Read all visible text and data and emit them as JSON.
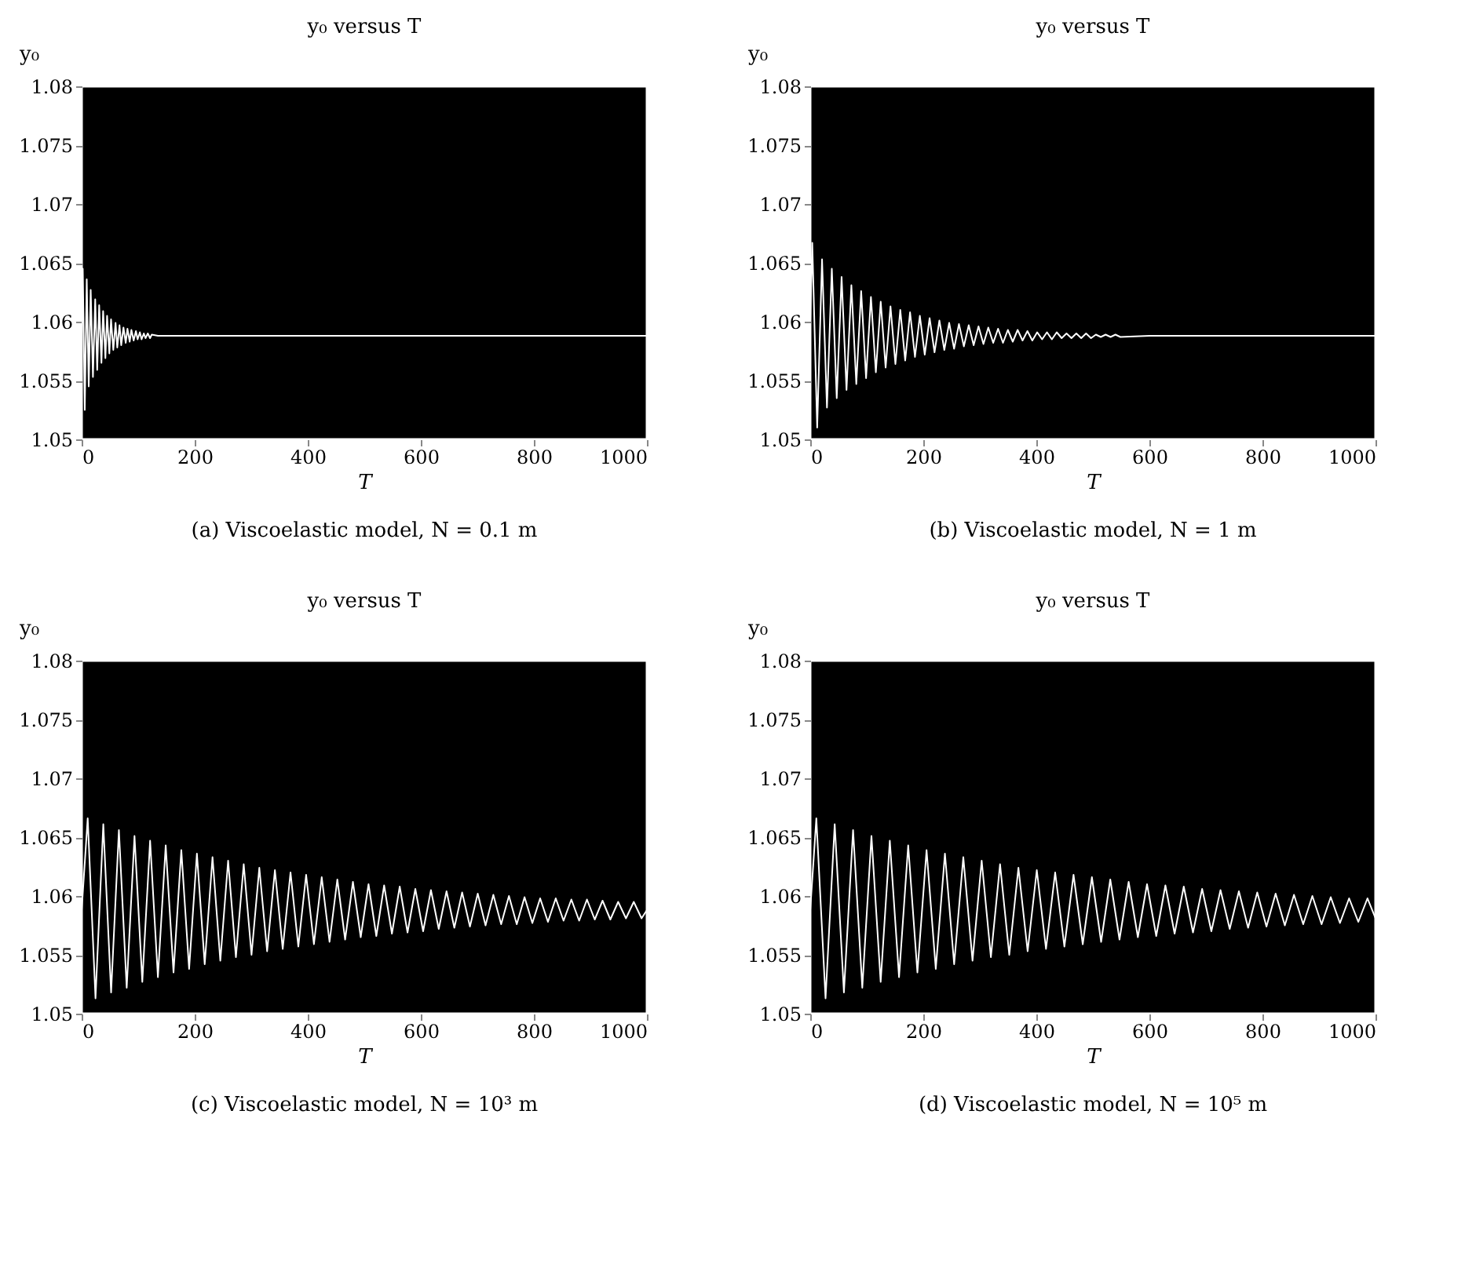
{
  "chart_data": [
    {
      "type": "line",
      "title": "y₀ versus T",
      "xlabel": "T",
      "ylabel": "y₀",
      "xlim": [
        0,
        1000
      ],
      "xticks": [
        0,
        200,
        400,
        600,
        800,
        1000
      ],
      "ylim": [
        1.05,
        1.08
      ],
      "yticks": [
        1.05,
        1.055,
        1.06,
        1.065,
        1.07,
        1.075,
        1.08
      ],
      "annotations": [
        "(a)  Viscoelastic model, N = 0.1 m"
      ],
      "series": [
        {
          "color": "#ffffff",
          "x": [
            0,
            2,
            5.5,
            9,
            12.5,
            16,
            20,
            24,
            27.5,
            31,
            35,
            38,
            42,
            45,
            49,
            52,
            56,
            60,
            63,
            67,
            70,
            74,
            78,
            81,
            85,
            88,
            92,
            96,
            99,
            103,
            106,
            110,
            113,
            117,
            121,
            124,
            135,
            200,
            400,
            600,
            800,
            1000
          ],
          "values": [
            1.0588,
            1.0645,
            1.0525,
            1.0636,
            1.0545,
            1.0627,
            1.0553,
            1.0619,
            1.0559,
            1.0614,
            1.0565,
            1.0609,
            1.0569,
            1.0605,
            1.0573,
            1.0602,
            1.0576,
            1.0599,
            1.0578,
            1.0597,
            1.058,
            1.0595,
            1.0582,
            1.0594,
            1.0583,
            1.0593,
            1.0584,
            1.0592,
            1.0585,
            1.0591,
            1.0585,
            1.059,
            1.0586,
            1.059,
            1.0586,
            1.0589,
            1.0588,
            1.0588,
            1.0588,
            1.0588,
            1.0588,
            1.0588
          ]
        }
      ]
    },
    {
      "type": "line",
      "title": "y₀ versus T",
      "xlabel": "T",
      "ylabel": "y₀",
      "xlim": [
        0,
        1000
      ],
      "xticks": [
        0,
        200,
        400,
        600,
        800,
        1000
      ],
      "ylim": [
        1.05,
        1.08
      ],
      "yticks": [
        1.05,
        1.055,
        1.06,
        1.065,
        1.07,
        1.075,
        1.08
      ],
      "annotations": [
        "(b)  Viscoelastic model, N = 1 m"
      ],
      "series": [
        {
          "color": "#ffffff",
          "x": [
            0,
            3.6,
            12.3,
            20.9,
            29.6,
            38.2,
            46.9,
            55.5,
            64.2,
            72.8,
            81.5,
            90.1,
            98.8,
            107.4,
            116.1,
            124.7,
            133.4,
            142,
            150.7,
            159.3,
            168,
            176.6,
            185.3,
            193.9,
            202.6,
            211.2,
            219.9,
            228.5,
            237.2,
            245.8,
            254.5,
            263.1,
            271.8,
            280.4,
            289.1,
            297.7,
            306.4,
            315,
            323.7,
            332.3,
            341,
            349.6,
            358.3,
            366.9,
            375.6,
            384.2,
            392.9,
            401.5,
            410.2,
            418.8,
            427.5,
            436.1,
            444.8,
            453.4,
            462.1,
            470.7,
            479.4,
            488,
            496.7,
            505.3,
            514,
            522.6,
            531.3,
            539.9,
            548.6,
            600,
            1000
          ],
          "values": [
            1.06,
            1.0667,
            1.051,
            1.0653,
            1.0527,
            1.0645,
            1.0535,
            1.0638,
            1.0542,
            1.0631,
            1.0547,
            1.0626,
            1.0552,
            1.0621,
            1.0557,
            1.0617,
            1.0561,
            1.0613,
            1.0564,
            1.061,
            1.0567,
            1.0608,
            1.057,
            1.0605,
            1.0572,
            1.0603,
            1.0574,
            1.0601,
            1.0576,
            1.0599,
            1.0577,
            1.0598,
            1.0579,
            1.0597,
            1.058,
            1.0596,
            1.0581,
            1.0595,
            1.0582,
            1.0594,
            1.0582,
            1.0593,
            1.0583,
            1.0593,
            1.0584,
            1.0592,
            1.0584,
            1.0591,
            1.0585,
            1.0591,
            1.0585,
            1.0591,
            1.0586,
            1.059,
            1.0586,
            1.059,
            1.0586,
            1.059,
            1.0586,
            1.0589,
            1.0587,
            1.0589,
            1.0587,
            1.0589,
            1.0587,
            1.0588,
            1.0588
          ]
        }
      ]
    },
    {
      "type": "line",
      "title": "y₀ versus T",
      "xlabel": "T",
      "ylabel": "y₀",
      "xlim": [
        0,
        1000
      ],
      "xticks": [
        0,
        200,
        400,
        600,
        800,
        1000
      ],
      "ylim": [
        1.05,
        1.08
      ],
      "yticks": [
        1.05,
        1.055,
        1.06,
        1.065,
        1.07,
        1.075,
        1.08
      ],
      "annotations": [
        "(c)  Viscoelastic model, N = 10³ m"
      ],
      "series": [
        {
          "color": "#ffffff",
          "x": [
            0,
            10.7,
            24.5,
            38.3,
            52.1,
            65.9,
            79.7,
            93.5,
            107.3,
            121.1,
            134.9,
            148.7,
            162.5,
            176.3,
            190.1,
            203.9,
            217.7,
            231.5,
            245.3,
            259.1,
            272.9,
            286.7,
            300.5,
            314.3,
            328.1,
            341.9,
            355.7,
            369.5,
            383.3,
            397.1,
            410.9,
            424.7,
            438.5,
            452.3,
            466.1,
            479.9,
            493.7,
            507.5,
            521.3,
            535.1,
            548.9,
            562.7,
            576.5,
            590.3,
            604.1,
            617.9,
            631.7,
            645.5,
            659.3,
            673.1,
            686.9,
            700.7,
            714.5,
            728.3,
            742.1,
            755.9,
            769.7,
            783.5,
            797.3,
            811.1,
            824.9,
            838.7,
            852.5,
            866.3,
            880.1,
            893.9,
            907.7,
            921.5,
            935.3,
            949.1,
            962.9,
            976.7,
            990.5,
            1000
          ],
          "values": [
            1.0588,
            1.0666,
            1.0513,
            1.0661,
            1.0518,
            1.0656,
            1.0522,
            1.0651,
            1.0527,
            1.0647,
            1.0531,
            1.0643,
            1.0535,
            1.0639,
            1.0538,
            1.0636,
            1.0542,
            1.0633,
            1.0545,
            1.063,
            1.0548,
            1.0627,
            1.055,
            1.0624,
            1.0553,
            1.0622,
            1.0555,
            1.062,
            1.0557,
            1.0618,
            1.0559,
            1.0616,
            1.0561,
            1.0614,
            1.0563,
            1.0612,
            1.0565,
            1.061,
            1.0566,
            1.0609,
            1.0568,
            1.0608,
            1.0569,
            1.0606,
            1.057,
            1.0605,
            1.0572,
            1.0604,
            1.0573,
            1.0603,
            1.0574,
            1.0602,
            1.0575,
            1.0601,
            1.0576,
            1.06,
            1.0576,
            1.0599,
            1.0577,
            1.0598,
            1.0578,
            1.0598,
            1.0579,
            1.0597,
            1.0579,
            1.0597,
            1.058,
            1.0596,
            1.058,
            1.0595,
            1.0581,
            1.0595,
            1.0581,
            1.0588
          ]
        }
      ]
    },
    {
      "type": "line",
      "title": "y₀ versus T",
      "xlabel": "T",
      "ylabel": "y₀",
      "xlim": [
        0,
        1000
      ],
      "xticks": [
        0,
        200,
        400,
        600,
        800,
        1000
      ],
      "ylim": [
        1.05,
        1.08
      ],
      "yticks": [
        1.05,
        1.055,
        1.06,
        1.065,
        1.07,
        1.075,
        1.08
      ],
      "annotations": [
        "(d)  Viscoelastic model, N = 10⁵ m"
      ],
      "series": [
        {
          "color": "#ffffff",
          "x": [
            0,
            10.8,
            27.1,
            43.3,
            59.6,
            75.8,
            92.1,
            108.3,
            124.6,
            140.8,
            157.1,
            173.3,
            189.6,
            205.8,
            222.1,
            238.3,
            254.6,
            270.8,
            287.1,
            303.3,
            319.6,
            335.8,
            352.1,
            368.3,
            384.6,
            400.8,
            417.1,
            433.3,
            449.6,
            465.8,
            482.1,
            498.3,
            514.6,
            530.8,
            547.1,
            563.3,
            579.6,
            595.8,
            612.1,
            628.3,
            644.6,
            660.8,
            677.1,
            693.3,
            709.6,
            725.8,
            742.1,
            758.3,
            774.6,
            790.8,
            807.1,
            823.3,
            839.6,
            855.8,
            872.1,
            888.3,
            904.6,
            920.8,
            937.1,
            953.3,
            969.6,
            985.8,
            1000
          ],
          "values": [
            1.0588,
            1.0666,
            1.0513,
            1.0661,
            1.0518,
            1.0656,
            1.0522,
            1.0651,
            1.0527,
            1.0647,
            1.0531,
            1.0643,
            1.0535,
            1.0639,
            1.0538,
            1.0636,
            1.0542,
            1.0633,
            1.0545,
            1.063,
            1.0548,
            1.0627,
            1.055,
            1.0624,
            1.0553,
            1.0622,
            1.0555,
            1.062,
            1.0557,
            1.0618,
            1.0559,
            1.0616,
            1.0561,
            1.0614,
            1.0563,
            1.0612,
            1.0565,
            1.061,
            1.0566,
            1.0609,
            1.0568,
            1.0608,
            1.0569,
            1.0606,
            1.057,
            1.0605,
            1.0572,
            1.0604,
            1.0573,
            1.0603,
            1.0574,
            1.0602,
            1.0575,
            1.0601,
            1.0576,
            1.06,
            1.0576,
            1.0599,
            1.0577,
            1.0598,
            1.0578,
            1.0598,
            1.0581
          ]
        }
      ]
    }
  ]
}
